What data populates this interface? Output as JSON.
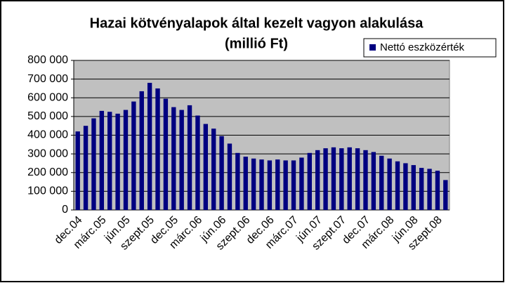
{
  "chart_data": {
    "type": "bar",
    "title": "Hazai kötvényalapok által kezelt vagyon alakulása",
    "subtitle": "(millió Ft)",
    "categories": [
      "dec.04",
      null,
      null,
      "márc.05",
      null,
      null,
      "jún.05",
      null,
      null,
      "szept.05",
      null,
      null,
      "dec.05",
      null,
      null,
      "márc.06",
      null,
      null,
      "jún.06",
      null,
      null,
      "szept.06",
      null,
      null,
      "dec.06",
      null,
      null,
      "márc.07",
      null,
      null,
      "jún.07",
      null,
      null,
      "szept.07",
      null,
      null,
      "dec.07",
      null,
      null,
      "márc.08",
      null,
      null,
      "jún.08",
      null,
      null,
      "szept.08",
      null
    ],
    "series": [
      {
        "name": "Nettó eszközérték",
        "color": "#000080",
        "values": [
          420000,
          450000,
          490000,
          530000,
          525000,
          515000,
          535000,
          580000,
          635000,
          680000,
          650000,
          595000,
          550000,
          535000,
          560000,
          505000,
          460000,
          435000,
          395000,
          355000,
          305000,
          285000,
          275000,
          270000,
          265000,
          270000,
          265000,
          265000,
          280000,
          305000,
          320000,
          330000,
          335000,
          330000,
          335000,
          330000,
          320000,
          310000,
          290000,
          275000,
          260000,
          250000,
          240000,
          225000,
          220000,
          210000,
          160000
        ]
      }
    ],
    "ylim": [
      0,
      800000
    ],
    "yticks": [
      0,
      {
        "value": 100000,
        "label": "100 000"
      },
      {
        "value": 200000,
        "label": "200 000"
      },
      {
        "value": 300000,
        "label": "300 000"
      },
      {
        "value": 400000,
        "label": "400 000"
      },
      {
        "value": 500000,
        "label": "500 000"
      },
      {
        "value": 600000,
        "label": "600 000"
      },
      {
        "value": 700000,
        "label": "700 000"
      },
      {
        "value": 800000,
        "label": "800 000"
      }
    ],
    "grid": true,
    "legend": "top-right"
  }
}
